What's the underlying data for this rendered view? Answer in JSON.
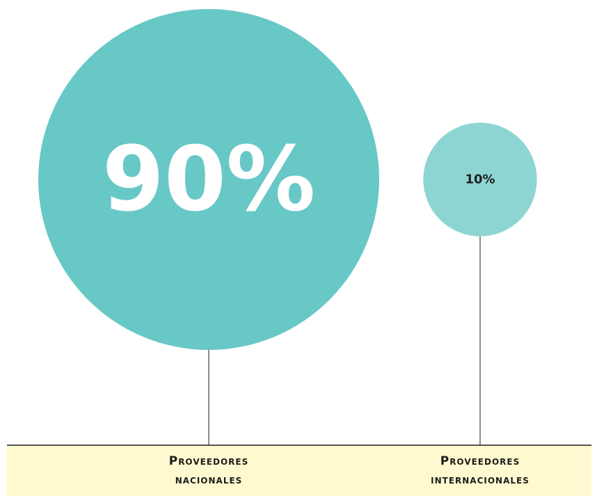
{
  "chart_data": {
    "type": "bubble",
    "categories": [
      "Proveedores nacionales",
      "Proveedores internacionales"
    ],
    "values": [
      90,
      10
    ],
    "value_labels": [
      "90%",
      "10%"
    ],
    "colors": [
      "#68c8c6",
      "#8dd5d3"
    ],
    "label_colors": [
      "#ffffff",
      "#1d1d1b"
    ]
  }
}
